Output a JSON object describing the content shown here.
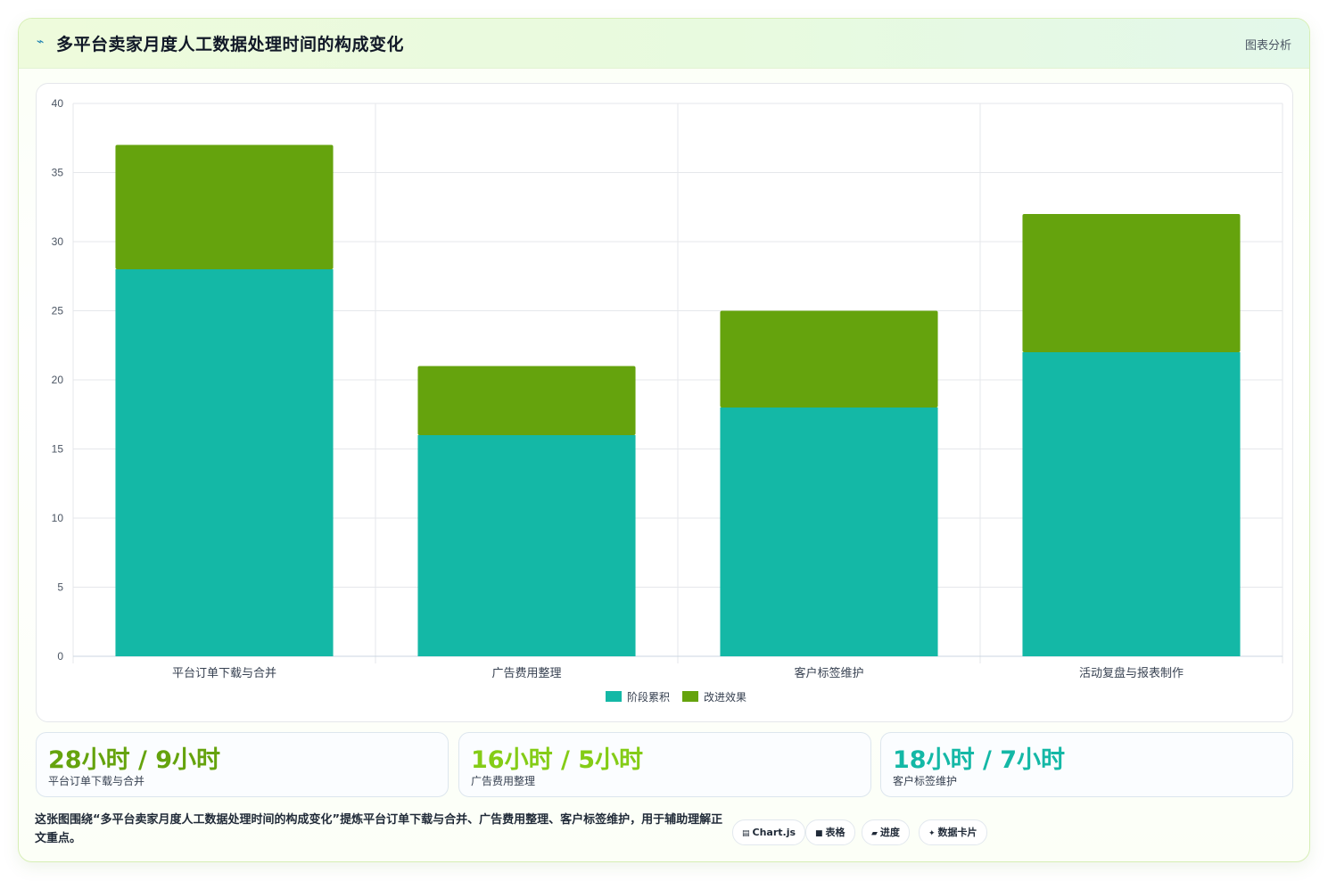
{
  "header": {
    "icon": "pulse-icon",
    "title": "多平台卖家月度人工数据处理时间的构成变化",
    "tag": "图表分析"
  },
  "colors": {
    "accumulated": "#14b8a6",
    "improvement": "#65a30d",
    "grid": "#e5e7eb",
    "tick": "#4b5563"
  },
  "chart_data": {
    "type": "bar",
    "stacked": true,
    "categories": [
      "平台订单下载与合并",
      "广告费用整理",
      "客户标签维护",
      "活动复盘与报表制作"
    ],
    "series": [
      {
        "name": "阶段累积",
        "values": [
          28,
          16,
          18,
          22
        ],
        "color": "#14b8a6"
      },
      {
        "name": "改进效果",
        "values": [
          9,
          5,
          7,
          10
        ],
        "color": "#65a30d"
      }
    ],
    "ylim": [
      0,
      40
    ],
    "yticks": [
      0,
      5,
      10,
      15,
      20,
      25,
      30,
      35,
      40
    ],
    "grid": true,
    "legend": "bottom"
  },
  "stats": [
    {
      "value": "28小时 / 9小时",
      "label": "平台订单下载与合并",
      "color": "#65a30d"
    },
    {
      "value": "16小时 / 5小时",
      "label": "广告费用整理",
      "color": "#84cc16"
    },
    {
      "value": "18小时 / 7小时",
      "label": "客户标签维护",
      "color": "#14b8a6"
    }
  ],
  "footer": {
    "text": "这张图围绕“多平台卖家月度人工数据处理时间的构成变化”提炼平台订单下载与合并、广告费用整理、客户标签维护，用于辅助理解正文重点。",
    "pills": [
      {
        "icon": "▤",
        "label": "Chart.js"
      },
      {
        "icon": "■",
        "label": "表格"
      },
      {
        "icon": "▰",
        "label": "进度"
      },
      {
        "icon": "✦",
        "label": "数据卡片"
      }
    ]
  }
}
